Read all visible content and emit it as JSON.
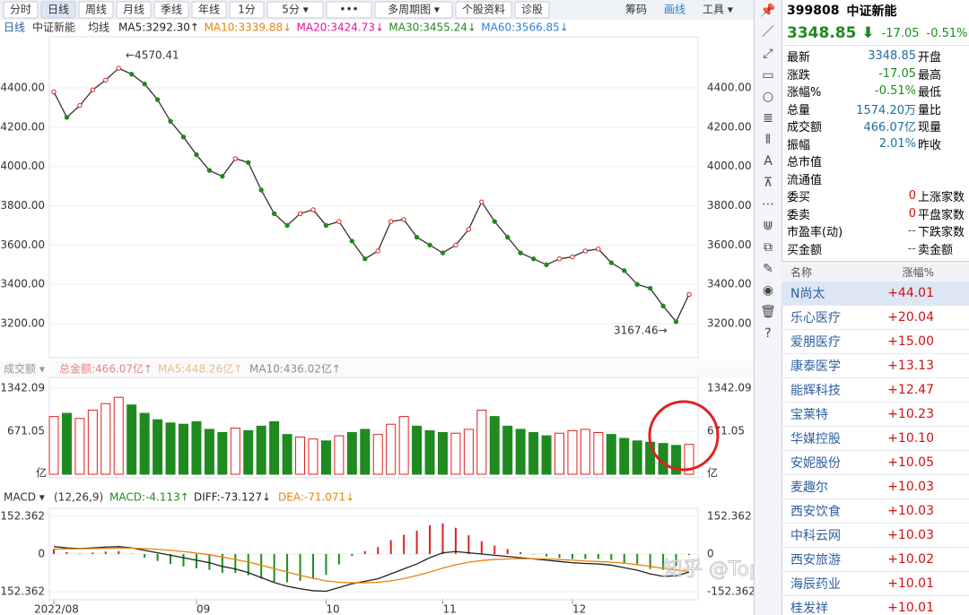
{
  "toolbar": {
    "tabs": [
      "分时",
      "日线",
      "周线",
      "月线",
      "季线",
      "年线",
      "1分",
      "5分 ▾",
      "•••",
      "多周期图 ▾",
      "个股资料",
      "诊股"
    ],
    "right": [
      "筹码",
      "画线",
      "工具 ▾"
    ]
  },
  "chart_info": {
    "period": "日线",
    "name": "中证新能",
    "mode": "均线",
    "ma": [
      {
        "text": "MA5:3292.30↑",
        "color": "#222222"
      },
      {
        "text": "MA10:3339.88↓",
        "color": "#e8830c"
      },
      {
        "text": "MA20:3424.73↓",
        "color": "#e0159e"
      },
      {
        "text": "MA30:3455.24↓",
        "color": "#1f8a1f"
      },
      {
        "text": "MA60:3566.85↓",
        "color": "#2f7fd0"
      }
    ]
  },
  "volume_info": [
    {
      "text": "成交额 ▾",
      "color": "#333333"
    },
    {
      "text": "总金额:466.07亿↑",
      "color": "#d01010"
    },
    {
      "text": "MA5:448.26亿↑",
      "color": "#e8830c"
    },
    {
      "text": "MA10:436.02亿↑",
      "color": "#222222"
    }
  ],
  "macd_info": [
    {
      "text": "MACD ▾",
      "color": "#333333"
    },
    {
      "text": "(12,26,9)",
      "color": "#333333"
    },
    {
      "text": "MACD:-4.113↑",
      "color": "#1f8a1f"
    },
    {
      "text": "DIFF:-73.127↓",
      "color": "#222222"
    },
    {
      "text": "DEA:-71.071↓",
      "color": "#e8830c"
    }
  ],
  "chart_data": [
    {
      "type": "line",
      "color": "#333333",
      "categories": [
        "2022/08",
        null,
        null,
        null,
        null,
        null,
        null,
        null,
        null,
        null,
        null,
        "09",
        null,
        null,
        null,
        null,
        null,
        null,
        null,
        null,
        null,
        "10",
        null,
        null,
        null,
        null,
        null,
        null,
        null,
        null,
        "11",
        null,
        null,
        null,
        null,
        null,
        null,
        null,
        null,
        null,
        "12",
        null,
        null,
        null,
        null,
        null,
        null,
        null,
        null,
        null
      ],
      "values": [
        4380,
        4250,
        4310,
        4390,
        4440,
        4500,
        4470,
        4420,
        4340,
        4230,
        4150,
        4060,
        3980,
        3950,
        4040,
        4020,
        3880,
        3760,
        3700,
        3760,
        3780,
        3700,
        3720,
        3620,
        3530,
        3570,
        3720,
        3730,
        3640,
        3600,
        3560,
        3600,
        3680,
        3820,
        3720,
        3640,
        3560,
        3530,
        3500,
        3530,
        3540,
        3570,
        3580,
        3510,
        3470,
        3400,
        3380,
        3290,
        3210,
        3348.85
      ],
      "ylim": [
        3045,
        4642
      ],
      "yticks": [
        {
          "value": 3200,
          "label": "3200.00"
        },
        {
          "value": 3400,
          "label": "3400.00"
        },
        {
          "value": 3600,
          "label": "3600.00"
        },
        {
          "value": 3800,
          "label": "3800.00"
        },
        {
          "value": 4000,
          "label": "4000.00"
        },
        {
          "value": 4200,
          "label": "4200.00"
        },
        {
          "value": 4400,
          "label": "4400.00"
        }
      ],
      "annotations": [
        "←4570.41",
        "3167.46→"
      ]
    },
    {
      "type": "bar",
      "up_color": "#e02020",
      "down_color": "#1f8a1f",
      "values": [
        900,
        950,
        870,
        1000,
        1100,
        1200,
        1080,
        950,
        850,
        800,
        780,
        820,
        700,
        650,
        720,
        680,
        750,
        820,
        620,
        580,
        550,
        520,
        600,
        650,
        700,
        620,
        780,
        900,
        750,
        680,
        650,
        640,
        700,
        1000,
        900,
        750,
        700,
        650,
        600,
        640,
        680,
        700,
        650,
        620,
        560,
        520,
        500,
        480,
        450,
        466.07
      ],
      "ylim": [
        0,
        1454
      ],
      "yticks": [
        671.05,
        1342.09
      ],
      "unit": "亿"
    },
    {
      "type": "bar",
      "up_color": "#e02020",
      "down_color": "#1f8a1f",
      "values": [
        20,
        8,
        2,
        6,
        10,
        12,
        2,
        -14,
        -28,
        -40,
        -50,
        -58,
        -64,
        -76,
        -76,
        -86,
        -100,
        -112,
        -114,
        -108,
        -100,
        -84,
        -42,
        -8,
        12,
        28,
        56,
        78,
        94,
        116,
        124,
        106,
        76,
        52,
        34,
        20,
        8,
        -2,
        -10,
        -16,
        -20,
        -20,
        -20,
        -24,
        -36,
        -44,
        -60,
        -64,
        -48,
        -4.113
      ],
      "series": [
        {
          "name": "DIFF",
          "color": "#222222",
          "values": [
            30,
            25,
            22,
            25,
            28,
            30,
            25,
            15,
            5,
            -5,
            -15,
            -25,
            -35,
            -50,
            -60,
            -75,
            -95,
            -115,
            -130,
            -140,
            -148,
            -150,
            -135,
            -120,
            -110,
            -100,
            -80,
            -60,
            -40,
            -15,
            5,
            10,
            5,
            0,
            -5,
            -10,
            -15,
            -20,
            -25,
            -30,
            -35,
            -38,
            -40,
            -45,
            -55,
            -65,
            -80,
            -90,
            -88,
            -73.127
          ]
        },
        {
          "name": "DEA",
          "color": "#e8830c",
          "values": [
            20,
            21,
            21,
            22,
            23,
            24,
            24,
            22,
            19,
            15,
            10,
            4,
            -3,
            -12,
            -22,
            -32,
            -45,
            -59,
            -73,
            -86,
            -98,
            -108,
            -114,
            -116,
            -116,
            -114,
            -108,
            -99,
            -87,
            -73,
            -57,
            -43,
            -33,
            -26,
            -22,
            -20,
            -19,
            -19,
            -20,
            -22,
            -25,
            -28,
            -30,
            -33,
            -37,
            -43,
            -50,
            -58,
            -64,
            -71.071
          ]
        }
      ],
      "ylim": [
        -170,
        170
      ],
      "yticks": [
        -152.362,
        0,
        152.362
      ]
    }
  ],
  "quote": {
    "code": "399808",
    "name": "中证新能",
    "price": "3348.85 ⬇",
    "change": "-17.05",
    "pct": "-0.51%",
    "rows": [
      [
        "最新",
        "3348.85",
        "开盘",
        ""
      ],
      [
        "涨跌",
        "-17.05",
        "最高",
        ""
      ],
      [
        "涨幅%",
        "-0.51%",
        "最低",
        ""
      ],
      [
        "总量",
        "1574.20万",
        "量比",
        ""
      ],
      [
        "成交额",
        "466.07亿",
        "现量",
        ""
      ],
      [
        "振幅",
        "2.01%",
        "昨收",
        ""
      ],
      [
        "总市值",
        "",
        "",
        ""
      ],
      [
        "流通值",
        "",
        "",
        ""
      ],
      [
        "委买",
        "0",
        "上涨家数",
        ""
      ],
      [
        "委卖",
        "0",
        "平盘家数",
        ""
      ],
      [
        "市盈率(动)",
        "--",
        "下跌家数",
        ""
      ],
      [
        "买金额",
        "--",
        "卖金额",
        ""
      ]
    ]
  },
  "list": {
    "header": [
      "名称",
      "涨幅%"
    ],
    "rows": [
      [
        "N尚太",
        "+44.01"
      ],
      [
        "乐心医疗",
        "+20.04"
      ],
      [
        "爱朋医疗",
        "+15.00"
      ],
      [
        "康泰医学",
        "+13.13"
      ],
      [
        "能辉科技",
        "+12.47"
      ],
      [
        "宝莱特",
        "+10.23"
      ],
      [
        "华媒控股",
        "+10.10"
      ],
      [
        "安妮股份",
        "+10.05"
      ],
      [
        "麦趣尔",
        "+10.03"
      ],
      [
        "西安饮食",
        "+10.03"
      ],
      [
        "中科云网",
        "+10.03"
      ],
      [
        "西安旅游",
        "+10.02"
      ],
      [
        "海辰药业",
        "+10.01"
      ],
      [
        "桂发祥",
        "+10.01"
      ]
    ]
  },
  "watermark": "知乎 @TopView"
}
